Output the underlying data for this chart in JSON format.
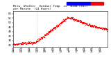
{
  "title_line1": "Milw  Weather  Outdoor Temp  vs  Wind Chill",
  "title_line2": "per Minute  (24 Hours)",
  "bg_color": "#ffffff",
  "plot_bg_color": "#ffffff",
  "dot_color": "#ff0000",
  "legend_blue": "#0000ff",
  "legend_red": "#ff0000",
  "y_ticks": [
    25,
    30,
    35,
    40,
    45,
    50,
    55,
    60
  ],
  "ylim": [
    23,
    63
  ],
  "xlim": [
    0,
    1440
  ],
  "marker_size": 0.8,
  "title_fontsize": 3.0,
  "tick_fontsize": 2.8,
  "n_points": 1440,
  "vline_color": "#bbbbbb",
  "vline_x": 360,
  "spine_lw": 0.4
}
